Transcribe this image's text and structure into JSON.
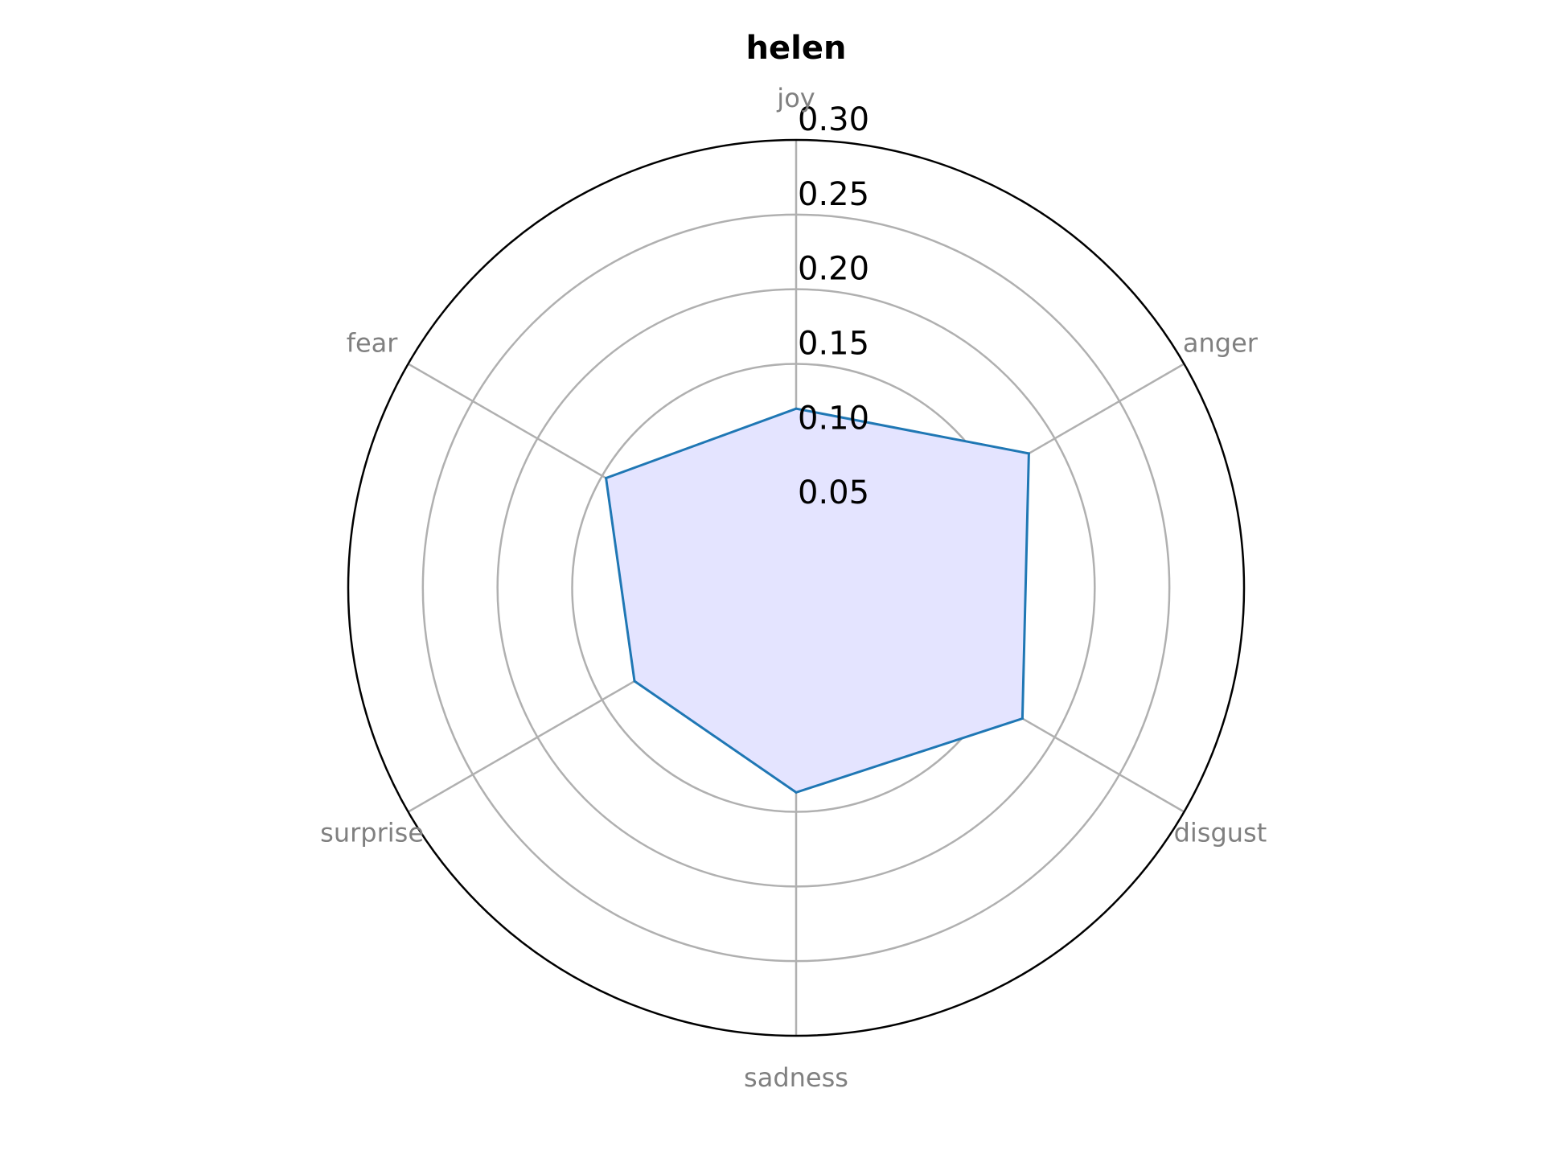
{
  "chart_data": {
    "type": "radar",
    "title": "helen",
    "categories": [
      "joy",
      "anger",
      "disgust",
      "sadness",
      "surprise",
      "fear"
    ],
    "series": [
      {
        "values": [
          0.12,
          0.18,
          0.175,
          0.137,
          0.125,
          0.147
        ]
      }
    ],
    "rlim": [
      0,
      0.3
    ],
    "rticks": [
      0.05,
      0.1,
      0.15,
      0.2,
      0.25,
      0.3
    ],
    "rtick_labels": [
      "0.05",
      "0.10",
      "0.15",
      "0.20",
      "0.25",
      "0.30"
    ],
    "grid": true,
    "colors": {
      "line": "#1f77b4",
      "fill": "#e4e4ff",
      "grid": "#b0b0b0",
      "outer_frame": "#000000",
      "axis_label": "#808080"
    }
  }
}
